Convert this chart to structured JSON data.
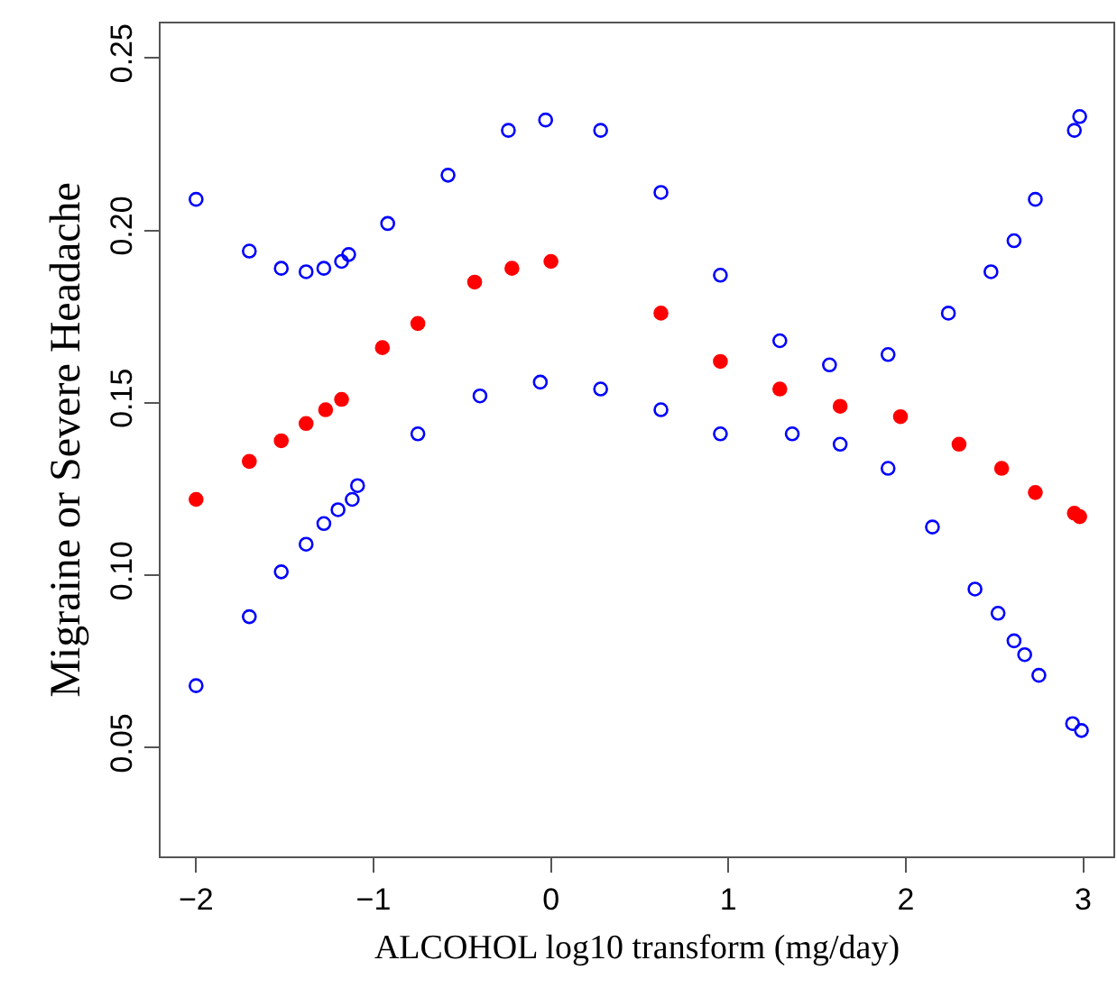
{
  "chart_data": {
    "type": "scatter",
    "xlabel": "ALCOHOL log10 transform (mg/day)",
    "ylabel": "Migraine or Severe Headache",
    "xlim": [
      -2.2,
      3.17
    ],
    "xticks": [
      {
        "value": -2,
        "label": "−2"
      },
      {
        "value": -1,
        "label": "−1"
      },
      0,
      1,
      2,
      3
    ],
    "ylim": [
      0.0185,
      0.26
    ],
    "yticks": [
      {
        "value": 0.05,
        "label": "0.05"
      },
      {
        "value": 0.1,
        "label": "0.10"
      },
      {
        "value": 0.15,
        "label": "0.15"
      },
      {
        "value": 0.2,
        "label": "0.20"
      },
      {
        "value": 0.25,
        "label": "0.25"
      }
    ],
    "grid": false,
    "series": [
      {
        "color": "#0000ff",
        "marker": "circle-open",
        "x": [
          -2,
          -1.7,
          -1.52,
          -1.38,
          -1.28,
          -1.18,
          -1.14,
          -0.92,
          -0.58,
          -0.24,
          -0.03,
          0.28,
          0.62,
          0.955,
          1.29,
          1.57,
          1.9,
          2.24,
          2.48,
          2.61,
          2.73,
          2.95,
          2.98
        ],
        "values": [
          0.209,
          0.194,
          0.189,
          0.188,
          0.189,
          0.191,
          0.193,
          0.202,
          0.216,
          0.229,
          0.232,
          0.229,
          0.211,
          0.187,
          0.168,
          0.161,
          0.164,
          0.176,
          0.188,
          0.197,
          0.209,
          0.229,
          0.233
        ]
      },
      {
        "color": "#ff0000",
        "marker": "circle",
        "x": [
          -2,
          -1.7,
          -1.52,
          -1.38,
          -1.27,
          -1.18,
          -0.95,
          -0.75,
          -0.43,
          -0.22,
          0,
          0.62,
          0.955,
          1.29,
          1.63,
          1.97,
          2.3,
          2.54,
          2.73,
          2.95,
          2.98
        ],
        "values": [
          0.122,
          0.133,
          0.139,
          0.144,
          0.148,
          0.151,
          0.166,
          0.173,
          0.185,
          0.189,
          0.191,
          0.176,
          0.162,
          0.154,
          0.149,
          0.146,
          0.138,
          0.131,
          0.124,
          0.118,
          0.117
        ]
      },
      {
        "color": "#0000ff",
        "marker": "circle-open",
        "x": [
          -2,
          -1.7,
          -1.52,
          -1.38,
          -1.28,
          -1.2,
          -1.12,
          -1.09,
          -0.75,
          -0.4,
          -0.06,
          0.28,
          0.62,
          0.955,
          1.36,
          1.63,
          1.9,
          2.15,
          2.39,
          2.52,
          2.61,
          2.67,
          2.75,
          2.94,
          2.99
        ],
        "values": [
          0.068,
          0.088,
          0.101,
          0.109,
          0.115,
          0.119,
          0.122,
          0.126,
          0.141,
          0.152,
          0.156,
          0.154,
          0.148,
          0.141,
          0.141,
          0.138,
          0.131,
          0.114,
          0.096,
          0.089,
          0.081,
          0.077,
          0.071,
          0.057,
          0.055
        ]
      }
    ]
  }
}
